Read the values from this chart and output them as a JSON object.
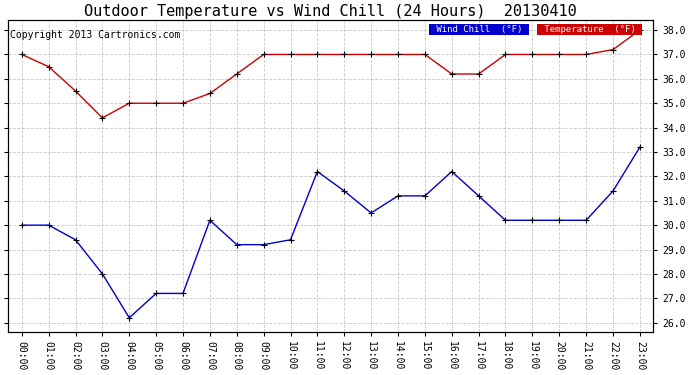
{
  "title": "Outdoor Temperature vs Wind Chill (24 Hours)  20130410",
  "copyright": "Copyright 2013 Cartronics.com",
  "background_color": "#ffffff",
  "plot_bg_color": "#ffffff",
  "grid_color": "#c8c8c8",
  "x_labels": [
    "00:00",
    "01:00",
    "02:00",
    "03:00",
    "04:00",
    "05:00",
    "06:00",
    "07:00",
    "08:00",
    "09:00",
    "10:00",
    "11:00",
    "12:00",
    "13:00",
    "14:00",
    "15:00",
    "16:00",
    "17:00",
    "18:00",
    "19:00",
    "20:00",
    "21:00",
    "22:00",
    "23:00"
  ],
  "temperature": [
    37.0,
    36.5,
    35.5,
    34.4,
    35.0,
    35.0,
    35.0,
    35.4,
    36.2,
    37.0,
    37.0,
    37.0,
    37.0,
    37.0,
    37.0,
    37.0,
    36.2,
    36.2,
    37.0,
    37.0,
    37.0,
    37.0,
    37.2,
    38.0
  ],
  "wind_chill": [
    30.0,
    30.0,
    29.4,
    28.0,
    26.2,
    27.2,
    27.2,
    30.2,
    29.2,
    29.2,
    29.4,
    32.2,
    31.4,
    30.5,
    31.2,
    31.2,
    32.2,
    31.2,
    30.2,
    30.2,
    30.2,
    30.2,
    31.4,
    33.2
  ],
  "temp_color": "#cc0000",
  "wind_color": "#0000cc",
  "marker_color": "#000000",
  "ylim": [
    25.6,
    38.4
  ],
  "yticks": [
    26.0,
    27.0,
    28.0,
    29.0,
    30.0,
    31.0,
    32.0,
    33.0,
    34.0,
    35.0,
    36.0,
    37.0,
    38.0
  ],
  "legend_wind_bg": "#0000cc",
  "legend_temp_bg": "#cc0000",
  "legend_text_color": "#ffffff",
  "title_fontsize": 11,
  "axis_fontsize": 7,
  "copyright_fontsize": 7
}
